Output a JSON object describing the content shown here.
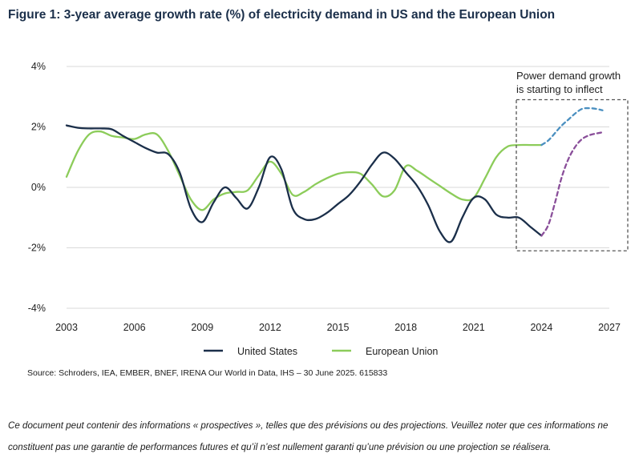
{
  "title": "Figure 1: 3-year average growth rate (%) of electricity demand in US and the European Union",
  "source": "Source: Schroders, IEA, EMBER, BNEF, IRENA Our World in Data, IHS – 30 June 2025. 615833",
  "disclaimer": "Ce document peut contenir des informations « prospectives », telles que des prévisions ou des projections. Veuillez noter que ces informations ne constituent pas une garantie de performances futures et qu’il n’est  nullement garanti qu’une prévision ou une projection se réalisera.",
  "colors": {
    "us": "#1b2f4a",
    "eu": "#8ccc5a",
    "us_proj": "#8a4f9a",
    "eu_proj": "#4a8fc0",
    "grid": "#d9d9d9",
    "box": "#555555"
  },
  "chart_data": {
    "type": "line",
    "title": "Figure 1: 3-year average growth rate (%) of electricity demand in US and the European Union",
    "xlabel": "",
    "ylabel": "",
    "xlim": [
      2003,
      2027
    ],
    "ylim": [
      -4,
      4
    ],
    "grid": true,
    "x_ticks": [
      2003,
      2006,
      2009,
      2012,
      2015,
      2018,
      2021,
      2024,
      2027
    ],
    "y_ticks": [
      -4,
      -2,
      0,
      2,
      4
    ],
    "y_tick_labels": [
      "-4%",
      "-2%",
      "0%",
      "2%",
      "4%"
    ],
    "legend": {
      "position": "bottom-center",
      "entries": [
        "United States",
        "European Union"
      ]
    },
    "series": [
      {
        "name": "United States",
        "style": "solid",
        "x": [
          2003,
          2003.5,
          2004,
          2004.5,
          2005,
          2005.5,
          2006,
          2006.5,
          2007,
          2007.5,
          2008,
          2008.5,
          2009,
          2009.5,
          2010,
          2010.5,
          2011,
          2011.5,
          2012,
          2012.5,
          2013,
          2013.5,
          2014,
          2014.5,
          2015,
          2015.5,
          2016,
          2016.5,
          2017,
          2017.5,
          2018,
          2018.5,
          2019,
          2019.5,
          2020,
          2020.5,
          2021,
          2021.5,
          2022,
          2022.5,
          2023,
          2023.5,
          2024
        ],
        "values": [
          2.05,
          1.97,
          1.95,
          1.95,
          1.92,
          1.7,
          1.5,
          1.3,
          1.15,
          1.1,
          0.5,
          -0.7,
          -1.15,
          -0.5,
          0.0,
          -0.35,
          -0.7,
          0.0,
          1.0,
          0.6,
          -0.7,
          -1.05,
          -1.05,
          -0.85,
          -0.55,
          -0.25,
          0.2,
          0.75,
          1.15,
          0.95,
          0.5,
          0.05,
          -0.6,
          -1.45,
          -1.8,
          -1.0,
          -0.35,
          -0.4,
          -0.9,
          -1.0,
          -1.0,
          -1.3,
          -1.6
        ]
      },
      {
        "name": "European Union",
        "style": "solid",
        "x": [
          2003,
          2003.5,
          2004,
          2004.5,
          2005,
          2005.5,
          2006,
          2006.5,
          2007,
          2007.5,
          2008,
          2008.5,
          2009,
          2009.5,
          2010,
          2010.5,
          2011,
          2011.5,
          2012,
          2012.5,
          2013,
          2013.5,
          2014,
          2014.5,
          2015,
          2015.5,
          2016,
          2016.5,
          2017,
          2017.5,
          2018,
          2018.5,
          2019,
          2019.5,
          2020,
          2020.5,
          2021,
          2021.5,
          2022,
          2022.5,
          2023,
          2023.5,
          2024
        ],
        "values": [
          0.35,
          1.2,
          1.75,
          1.85,
          1.7,
          1.65,
          1.6,
          1.75,
          1.75,
          1.2,
          0.4,
          -0.4,
          -0.75,
          -0.4,
          -0.2,
          -0.15,
          -0.1,
          0.4,
          0.85,
          0.45,
          -0.25,
          -0.15,
          0.1,
          0.3,
          0.45,
          0.5,
          0.45,
          0.1,
          -0.3,
          -0.1,
          0.7,
          0.55,
          0.3,
          0.05,
          -0.2,
          -0.4,
          -0.35,
          0.3,
          1.0,
          1.35,
          1.4,
          1.4,
          1.4
        ]
      },
      {
        "name": "United States (projection)",
        "style": "dashed",
        "x": [
          2024,
          2024.3,
          2024.6,
          2024.9,
          2025.2,
          2025.5,
          2025.8,
          2026.1,
          2026.4,
          2026.7
        ],
        "values": [
          -1.6,
          -1.25,
          -0.5,
          0.35,
          0.95,
          1.35,
          1.6,
          1.72,
          1.78,
          1.82
        ]
      },
      {
        "name": "European Union (projection)",
        "style": "dashed",
        "x": [
          2024,
          2024.3,
          2024.6,
          2024.9,
          2025.2,
          2025.5,
          2025.8,
          2026.1,
          2026.4,
          2026.7
        ],
        "values": [
          1.4,
          1.55,
          1.8,
          2.05,
          2.25,
          2.45,
          2.6,
          2.62,
          2.6,
          2.55
        ]
      }
    ],
    "annotations": [
      {
        "text": "Power demand growth is starting to inflect",
        "lines": [
          "Power demand growth",
          "is starting to inflect"
        ],
        "x_range": [
          2023.6,
          2027
        ],
        "y_range": [
          -2.1,
          2.9
        ]
      }
    ]
  }
}
